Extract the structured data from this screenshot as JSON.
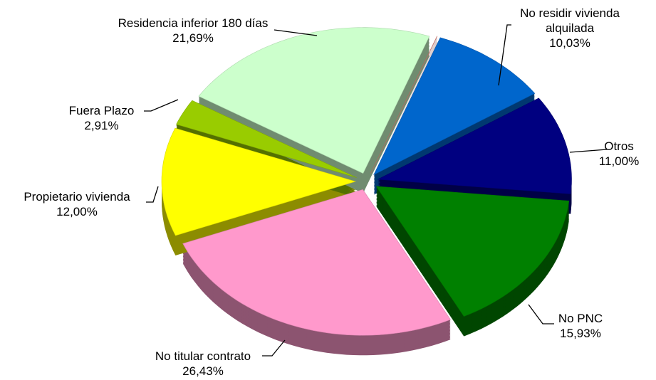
{
  "chart_data": {
    "type": "pie",
    "categories": [
      null,
      "No residir vivienda alquilada",
      "Otros",
      "No PNC",
      "No titular contrato",
      "Propietario vivienda",
      "Fuera Plazo",
      "Residencia inferior 180 días"
    ],
    "values": [
      0.01,
      10.03,
      11.0,
      15.93,
      26.43,
      12.0,
      2.91,
      21.69
    ],
    "value_labels": [
      null,
      "10,03%",
      "11,00%",
      "15,93%",
      "26,43%",
      "12,00%",
      "2,91%",
      "21,69%"
    ],
    "colors": [
      "#e07870",
      "#0066cc",
      "#000080",
      "#008000",
      "#ff99cc",
      "#ffff00",
      "#99cc00",
      "#ccffcc"
    ]
  }
}
